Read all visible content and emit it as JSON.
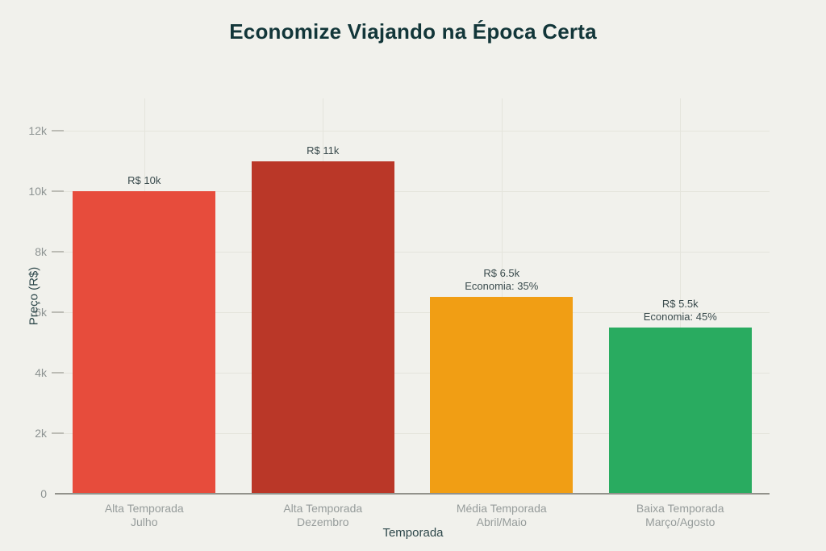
{
  "background_color": "#f1f1ec",
  "chart_data": {
    "type": "bar",
    "title": "Economize Viajando na Época Certa",
    "title_color": "#123639",
    "xlabel": "Temporada",
    "ylabel": "Preço (R$)",
    "axis_title_color": "#2d474a",
    "ylim": [
      0,
      13067
    ],
    "grid": true,
    "grid_color": "#e4e4dc",
    "axis_line_color": "#92928b",
    "tick_label_color": "#8d9392",
    "category_label_color": "#969c9b",
    "value_label_color": "#3a4b4d",
    "legend": "none",
    "y_ticks": [
      {
        "value": 0,
        "label": "0"
      },
      {
        "value": 2000,
        "label": "2k"
      },
      {
        "value": 4000,
        "label": "4k"
      },
      {
        "value": 6000,
        "label": "6k"
      },
      {
        "value": 8000,
        "label": "8k"
      },
      {
        "value": 10000,
        "label": "10k"
      },
      {
        "value": 12000,
        "label": "12k"
      }
    ],
    "categories": [
      "Alta Temporada",
      "Alta Temporada",
      "Média Temporada",
      "Baixa Temporada"
    ],
    "values": [
      10000,
      11000,
      6500,
      5500
    ],
    "bars": [
      {
        "category": "Alta Temporada",
        "period": "Julho",
        "value": 10000,
        "value_label": "R$ 10k",
        "savings_label": "",
        "color": "#e74c3c"
      },
      {
        "category": "Alta Temporada",
        "period": "Dezembro",
        "value": 11000,
        "value_label": "R$ 11k",
        "savings_label": "",
        "color": "#ba3728"
      },
      {
        "category": "Média Temporada",
        "period": "Abril/Maio",
        "value": 6500,
        "value_label": "R$ 6.5k",
        "savings_label": "Economia: 35%",
        "color": "#f19e14"
      },
      {
        "category": "Baixa Temporada",
        "period": "Março/Agosto",
        "value": 5500,
        "value_label": "R$ 5.5k",
        "savings_label": "Economia: 45%",
        "color": "#29ab60"
      }
    ]
  }
}
